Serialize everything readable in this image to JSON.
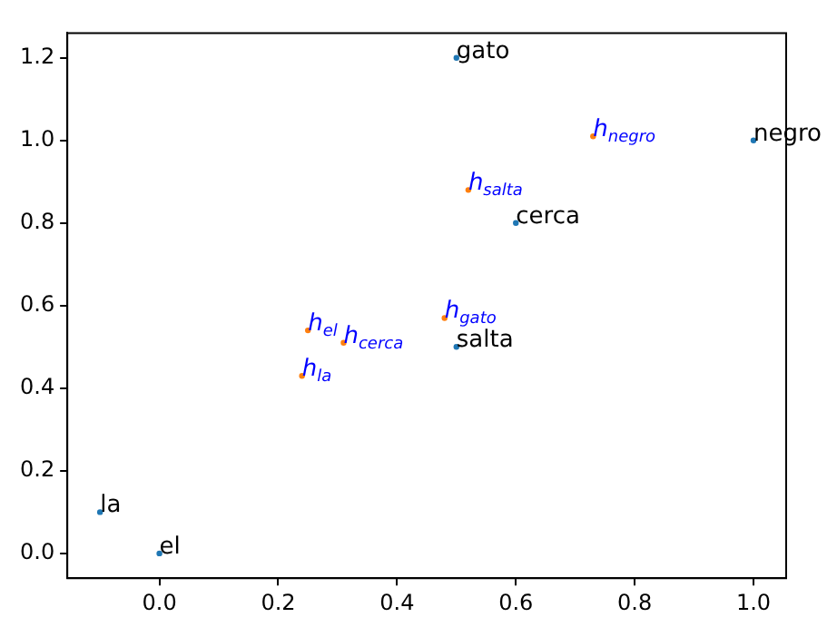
{
  "chart_data": {
    "type": "scatter",
    "series": [
      {
        "color": "#1f77b4",
        "x": [
          0.5,
          1.0,
          0.6,
          0.5,
          -0.1,
          0.0
        ],
        "values": [
          1.2,
          1.0,
          0.8,
          0.5,
          0.1,
          0.0
        ]
      },
      {
        "color": "#ff7f0e",
        "x": [
          0.73,
          0.52,
          0.48,
          0.25,
          0.31,
          0.24
        ],
        "values": [
          1.01,
          0.88,
          0.57,
          0.54,
          0.51,
          0.43
        ]
      }
    ],
    "annotations": [
      {
        "text": "gato",
        "x": 0.5,
        "y": 1.2
      },
      {
        "text": "negro",
        "x": 1.0,
        "y": 1.0
      },
      {
        "text": "cerca",
        "x": 0.6,
        "y": 0.8
      },
      {
        "text": "salta",
        "x": 0.5,
        "y": 0.5
      },
      {
        "text": "la",
        "x": -0.1,
        "y": 0.1
      },
      {
        "text": "el",
        "x": 0.0,
        "y": 0.0
      },
      {
        "text": "h$_{negro}$",
        "x": 0.73,
        "y": 1.01
      },
      {
        "text": "h$_{salta}$",
        "x": 0.52,
        "y": 0.88
      },
      {
        "text": "h$_{gato}$",
        "x": 0.48,
        "y": 0.57
      },
      {
        "text": "h$_{el}$",
        "x": 0.25,
        "y": 0.54
      },
      {
        "text": "h$_{cerca}$",
        "x": 0.31,
        "y": 0.51
      },
      {
        "text": "h$_{la}$",
        "x": 0.24,
        "y": 0.43
      }
    ],
    "xlim": [
      -0.155,
      1.055
    ],
    "xticks": [
      {
        "value": 0,
        "label": "0.0"
      },
      0.2,
      0.4,
      0.6,
      0.8,
      {
        "value": 1,
        "label": "1.0"
      }
    ],
    "ylim": [
      -0.06,
      1.26
    ],
    "yticks": [
      {
        "value": 0,
        "label": "0.0"
      },
      0.2,
      0.4,
      0.6,
      0.8,
      {
        "value": 1,
        "label": "1.0"
      },
      1.2
    ],
    "marker": "circle",
    "grid": false,
    "legend": false
  }
}
